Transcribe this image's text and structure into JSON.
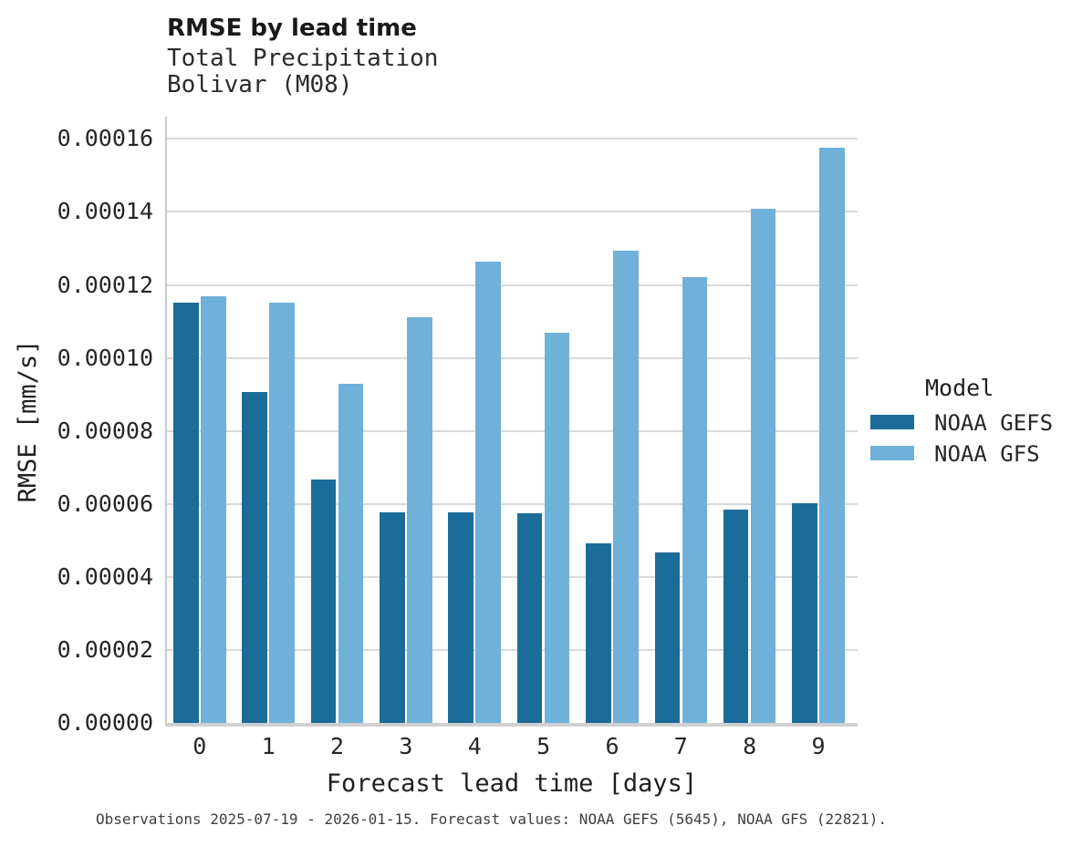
{
  "header": {
    "title": "RMSE by lead time",
    "subtitle_line1": "Total Precipitation",
    "subtitle_line2": "Bolivar (M08)"
  },
  "axes": {
    "x_label": "Forecast lead time [days]",
    "y_label": "RMSE [mm/s]"
  },
  "legend": {
    "title": "Model",
    "items": [
      {
        "label": "NOAA GEFS",
        "color": "#1c6c9a"
      },
      {
        "label": "NOAA GFS",
        "color": "#6fb1d9"
      }
    ]
  },
  "caption": "Observations 2025-07-19 - 2026-01-15. Forecast values: NOAA GEFS (5645), NOAA GFS (22821).",
  "colors": {
    "grid": "#d9d9d9",
    "spine": "#cccccc",
    "bottom_spine": "#d0d0d0",
    "tick_text": "#262626",
    "caption_text": "#3f3f3f"
  },
  "chart_data": {
    "type": "bar",
    "title": "RMSE by lead time",
    "subtitle": [
      "Total Precipitation",
      "Bolivar (M08)"
    ],
    "categories": [
      "0",
      "1",
      "2",
      "3",
      "4",
      "5",
      "6",
      "7",
      "8",
      "9"
    ],
    "series": [
      {
        "name": "NOAA GEFS",
        "color": "#1c6c9a",
        "values": [
          0.0001151,
          9.07e-05,
          6.67e-05,
          5.76e-05,
          5.76e-05,
          5.75e-05,
          4.92e-05,
          4.66e-05,
          5.85e-05,
          6.01e-05
        ]
      },
      {
        "name": "NOAA GFS",
        "color": "#6fb1d9",
        "values": [
          0.0001169,
          0.0001151,
          9.29e-05,
          0.0001111,
          0.0001265,
          0.0001069,
          0.0001294,
          0.0001222,
          0.0001409,
          0.0001575
        ]
      }
    ],
    "xlabel": "Forecast lead time [days]",
    "ylabel": "RMSE [mm/s]",
    "ylim": [
      0,
      0.0001661
    ],
    "y_ticks": [
      "0.00000",
      "0.00002",
      "0.00004",
      "0.00006",
      "0.00008",
      "0.00010",
      "0.00012",
      "0.00014",
      "0.00016"
    ],
    "grid": "horizontal",
    "legend_position": "right"
  }
}
